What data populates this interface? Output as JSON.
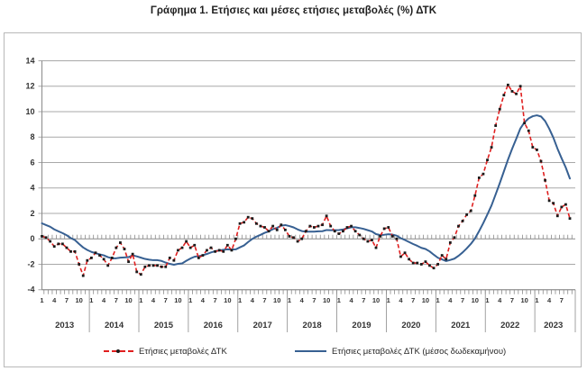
{
  "title": "Γράφημα 1. Ετήσιες και μέσες ετήσιες μεταβολές (%) ΔΤΚ",
  "legend": {
    "series1": "Ετήσιες μεταβολές ΔΤΚ",
    "series2": "Ετήσιες μεταβολές ΔΤΚ (μέσος δωδεκαμήνου)"
  },
  "colors": {
    "annual": "#e01f1f",
    "marker": "#1a1a1a",
    "average": "#376092",
    "grid": "#a8a8a8",
    "axis": "#8a8a8a",
    "label": "#333333"
  },
  "chart_data": {
    "type": "line",
    "title": "Γράφημα 1. Ετήσιες και μέσες ετήσιες μεταβολές (%) ΔΤΚ",
    "ylim": [
      -4,
      14
    ],
    "y_ticks": [
      14,
      12,
      10,
      8,
      6,
      4,
      2,
      0,
      -2,
      -4
    ],
    "grid": true,
    "legend_position": "bottom",
    "years": [
      "2013",
      "2014",
      "2015",
      "2016",
      "2017",
      "2018",
      "2019",
      "2020",
      "2021",
      "2022",
      "2023"
    ],
    "month_tick_labels": [
      "1",
      "4",
      "7",
      "10"
    ],
    "x_start": "2013-01",
    "x_end": "2023-09",
    "series": [
      {
        "name": "Ετήσιες μεταβολές ΔΤΚ",
        "style": "dashed-red-with-black-markers",
        "values": [
          0.2,
          0.1,
          -0.2,
          -0.6,
          -0.4,
          -0.4,
          -0.7,
          -1.0,
          -1.0,
          -2.0,
          -2.9,
          -1.7,
          -1.5,
          -1.1,
          -1.3,
          -1.6,
          -2.1,
          -1.5,
          -0.7,
          -0.3,
          -0.8,
          -1.8,
          -1.2,
          -2.6,
          -2.8,
          -2.2,
          -2.1,
          -2.1,
          -2.1,
          -2.2,
          -2.2,
          -1.5,
          -1.7,
          -0.9,
          -0.7,
          -0.2,
          -0.7,
          -0.5,
          -1.5,
          -1.3,
          -0.9,
          -0.7,
          -1.0,
          -0.9,
          -1.0,
          -0.5,
          -0.9,
          0.0,
          1.2,
          1.3,
          1.7,
          1.6,
          1.2,
          1.0,
          0.9,
          0.6,
          1.0,
          0.7,
          1.1,
          0.7,
          0.2,
          0.1,
          -0.2,
          0.0,
          0.6,
          1.0,
          0.9,
          1.0,
          1.1,
          1.8,
          1.0,
          0.6,
          0.4,
          0.6,
          0.9,
          1.0,
          0.6,
          0.3,
          0.0,
          -0.2,
          -0.1,
          -0.7,
          0.2,
          0.8,
          0.9,
          0.2,
          0.0,
          -1.4,
          -1.1,
          -1.6,
          -1.9,
          -1.9,
          -2.0,
          -1.8,
          -2.1,
          -2.3,
          -2.0,
          -1.3,
          -1.6,
          -0.3,
          0.1,
          1.0,
          1.4,
          1.9,
          2.2,
          3.4,
          4.8,
          5.1,
          6.2,
          7.2,
          8.9,
          10.2,
          11.3,
          12.1,
          11.6,
          11.4,
          12.0,
          9.1,
          8.5,
          7.2,
          7.0,
          6.1,
          4.6,
          3.0,
          2.8,
          1.8,
          2.5,
          2.7,
          1.6
        ]
      },
      {
        "name": "Ετήσιες μεταβολές ΔΤΚ (μέσος δωδεκαμήνου)",
        "style": "solid-blue",
        "values": [
          1.22,
          1.08,
          0.95,
          0.74,
          0.59,
          0.45,
          0.28,
          0.06,
          -0.1,
          -0.4,
          -0.68,
          -0.88,
          -1.03,
          -1.13,
          -1.22,
          -1.3,
          -1.44,
          -1.53,
          -1.53,
          -1.48,
          -1.46,
          -1.44,
          -1.3,
          -1.38,
          -1.48,
          -1.58,
          -1.64,
          -1.68,
          -1.68,
          -1.74,
          -1.87,
          -1.97,
          -2.04,
          -1.97,
          -1.93,
          -1.73,
          -1.55,
          -1.41,
          -1.36,
          -1.29,
          -1.19,
          -1.07,
          -0.97,
          -0.92,
          -0.86,
          -0.83,
          -0.84,
          -0.83,
          -0.67,
          -0.52,
          -0.25,
          -0.01,
          0.17,
          0.31,
          0.47,
          0.59,
          0.76,
          0.86,
          1.03,
          1.08,
          1.0,
          0.9,
          0.74,
          0.61,
          0.56,
          0.56,
          0.56,
          0.59,
          0.6,
          0.69,
          0.68,
          0.68,
          0.69,
          0.73,
          0.83,
          0.91,
          0.91,
          0.85,
          0.78,
          0.68,
          0.58,
          0.37,
          0.3,
          0.32,
          0.36,
          0.33,
          0.25,
          0.05,
          -0.09,
          -0.25,
          -0.41,
          -0.55,
          -0.71,
          -0.8,
          -0.99,
          -1.25,
          -1.49,
          -1.62,
          -1.75,
          -1.66,
          -1.56,
          -1.34,
          -1.07,
          -0.75,
          -0.4,
          0.03,
          0.61,
          1.23,
          1.91,
          2.62,
          3.49,
          4.37,
          5.3,
          6.23,
          7.08,
          7.87,
          8.68,
          9.16,
          9.47,
          9.64,
          9.71,
          9.62,
          9.26,
          8.66,
          7.95,
          7.09,
          6.33,
          5.61,
          4.74
        ]
      }
    ]
  }
}
